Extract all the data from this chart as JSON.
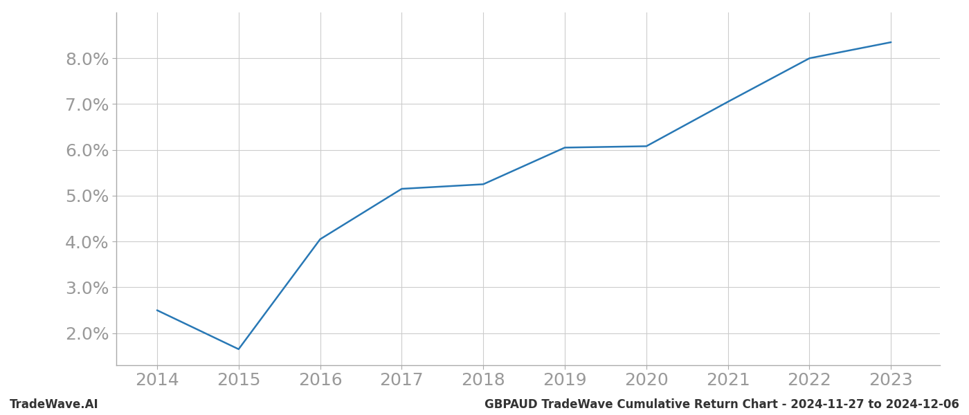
{
  "x_years": [
    2014,
    2015,
    2016,
    2017,
    2018,
    2019,
    2020,
    2021,
    2022,
    2023
  ],
  "y_values": [
    2.5,
    1.65,
    4.05,
    5.15,
    5.25,
    6.05,
    6.08,
    7.05,
    8.0,
    8.35
  ],
  "line_color": "#2878b5",
  "background_color": "#ffffff",
  "grid_color": "#cccccc",
  "footer_left": "TradeWave.AI",
  "footer_right": "GBPAUD TradeWave Cumulative Return Chart - 2024-11-27 to 2024-12-06",
  "ylim": [
    1.3,
    9.0
  ],
  "yticks": [
    2.0,
    3.0,
    4.0,
    5.0,
    6.0,
    7.0,
    8.0
  ],
  "xlim": [
    2013.5,
    2023.6
  ],
  "xticks": [
    2014,
    2015,
    2016,
    2017,
    2018,
    2019,
    2020,
    2021,
    2022,
    2023
  ],
  "tick_label_color": "#999999",
  "tick_fontsize": 18,
  "footer_fontsize": 12,
  "line_width": 1.8,
  "spine_color": "#aaaaaa"
}
